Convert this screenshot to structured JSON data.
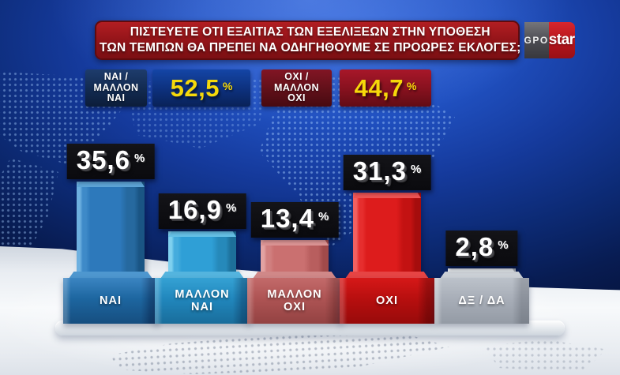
{
  "banner": {
    "question_line1": "ΠΙΣΤΕΥΕΤΕ ΟΤΙ ΕΞΑΙΤΙΑΣ ΤΩΝ ΕΞΕΛΙΞΕΩΝ ΣΤΗΝ ΥΠΟΘΕΣΗ",
    "question_line2": "ΤΩΝ ΤΕΜΠΩΝ ΘΑ ΠΡΕΠΕΙ ΝΑ ΟΔΗΓΗΘΟΥΜΕ ΣΕ ΠΡΟΩΡΕΣ ΕΚΛΟΓΕΣ;",
    "logos": {
      "gpo": "GPO",
      "star": "star"
    }
  },
  "summary": {
    "yes": {
      "label_line1": "ΝΑΙ /",
      "label_line2": "ΜΑΛΛΟΝ",
      "label_line3": "ΝΑΙ",
      "value": "52,5",
      "unit": "%"
    },
    "no": {
      "label_line1": "ΟΧΙ /",
      "label_line2": "ΜΑΛΛΟΝ",
      "label_line3": "ΟΧΙ",
      "value": "44,7",
      "unit": "%"
    }
  },
  "bars": [
    {
      "label_line1": "ΝΑΙ",
      "label_line2": "",
      "value": "35,6",
      "unit": "%"
    },
    {
      "label_line1": "ΜΑΛΛΟΝ",
      "label_line2": "ΝΑΙ",
      "value": "16,9",
      "unit": "%"
    },
    {
      "label_line1": "ΜΑΛΛΟΝ",
      "label_line2": "ΟΧΙ",
      "value": "13,4",
      "unit": "%"
    },
    {
      "label_line1": "ΟΧΙ",
      "label_line2": "",
      "value": "31,3",
      "unit": "%"
    },
    {
      "label_line1": "ΔΞ / ΔΑ",
      "label_line2": "",
      "value": "2,8",
      "unit": "%"
    }
  ],
  "colors": {
    "banner_red": "#96151a",
    "summary_yes_blue": "#0d307c",
    "summary_no_red": "#85111e",
    "value_yellow": "#f6d90a",
    "badge_black": "#0b0b0f",
    "bar_nai": "#2d79bb",
    "bar_mallon_nai": "#2f9fd6",
    "bar_mallon_oxi": "#ca7070",
    "bar_oxi": "#dd1c1c",
    "bar_dx_da": "#ccd1d7"
  },
  "chart_data": {
    "type": "bar",
    "title": "ΠΙΣΤΕΥΕΤΕ ΟΤΙ ΕΞΑΙΤΙΑΣ ΤΩΝ ΕΞΕΛΙΞΕΩΝ ΣΤΗΝ ΥΠΟΘΕΣΗ ΤΩΝ ΤΕΜΠΩΝ ΘΑ ΠΡΕΠΕΙ ΝΑ ΟΔΗΓΗΘΟΥΜΕ ΣΕ ΠΡΟΩΡΕΣ ΕΚΛΟΓΕΣ;",
    "categories": [
      "ΝΑΙ",
      "ΜΑΛΛΟΝ ΝΑΙ",
      "ΜΑΛΛΟΝ ΟΧΙ",
      "ΟΧΙ",
      "ΔΞ / ΔΑ"
    ],
    "values": [
      35.6,
      16.9,
      13.4,
      31.3,
      2.8
    ],
    "value_labels": [
      "35,6 %",
      "16,9 %",
      "13,4 %",
      "31,3 %",
      "2,8 %"
    ],
    "unit": "%",
    "aggregates": [
      {
        "label": "ΝΑΙ / ΜΑΛΛΟΝ ΝΑΙ",
        "value": 52.5,
        "display": "52,5 %"
      },
      {
        "label": "ΟΧΙ / ΜΑΛΛΟΝ ΟΧΙ",
        "value": 44.7,
        "display": "44,7 %"
      }
    ],
    "ylim": [
      0,
      40
    ],
    "grid": false,
    "legend": false,
    "source": "GPO"
  }
}
